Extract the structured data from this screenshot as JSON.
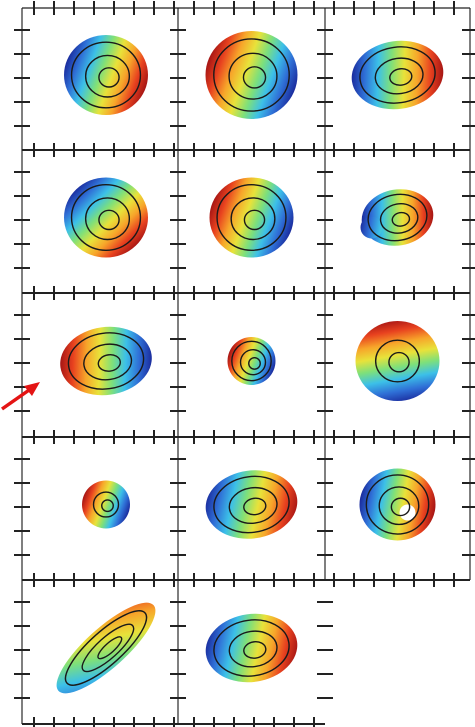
{
  "figure": {
    "grid": {
      "rows": 5,
      "cols": 3,
      "filled_panels": 14
    },
    "axes": {
      "tick_labels": "none",
      "border_color": "#555555",
      "tick_color": "#222222"
    },
    "colormap": [
      "#1a2a9c",
      "#2f6fd6",
      "#3cc0e8",
      "#7ee07a",
      "#e8e23a",
      "#f7a52a",
      "#e8421f",
      "#a41414"
    ],
    "contour_color": "#1a1a1a",
    "annotation": {
      "type": "arrow",
      "color": "#e41414",
      "points_to_panel": 7
    },
    "panels": [
      {
        "id": 1,
        "row": 1,
        "col": 1,
        "gradient_angle": 20,
        "contours": 3,
        "shape": "round"
      },
      {
        "id": 2,
        "row": 1,
        "col": 2,
        "gradient_angle": 200,
        "contours": 3,
        "shape": "irregular"
      },
      {
        "id": 3,
        "row": 1,
        "col": 3,
        "gradient_angle": 10,
        "contours": 3,
        "shape": "oval"
      },
      {
        "id": 4,
        "row": 2,
        "col": 1,
        "gradient_angle": 45,
        "contours": 3,
        "shape": "round"
      },
      {
        "id": 5,
        "row": 2,
        "col": 2,
        "gradient_angle": 200,
        "contours": 3,
        "shape": "round"
      },
      {
        "id": 6,
        "row": 2,
        "col": 3,
        "gradient_angle": 10,
        "contours": 3,
        "shape": "hook"
      },
      {
        "id": 7,
        "row": 3,
        "col": 1,
        "gradient_angle": 190,
        "contours": 3,
        "shape": "oval"
      },
      {
        "id": 8,
        "row": 3,
        "col": 2,
        "gradient_angle": 200,
        "contours": 3,
        "shape": "small"
      },
      {
        "id": 9,
        "row": 3,
        "col": 3,
        "gradient_angle": 260,
        "contours": 2,
        "shape": "round"
      },
      {
        "id": 10,
        "row": 4,
        "col": 1,
        "gradient_angle": 200,
        "contours": 2,
        "shape": "small"
      },
      {
        "id": 11,
        "row": 4,
        "col": 2,
        "gradient_angle": 20,
        "contours": 3,
        "shape": "oval"
      },
      {
        "id": 12,
        "row": 4,
        "col": 3,
        "gradient_angle": 10,
        "contours": 3,
        "shape": "ring"
      },
      {
        "id": 13,
        "row": 5,
        "col": 1,
        "gradient_angle": 300,
        "contours": 3,
        "shape": "elongated"
      },
      {
        "id": 14,
        "row": 5,
        "col": 2,
        "gradient_angle": 20,
        "contours": 3,
        "shape": "oval"
      }
    ]
  }
}
